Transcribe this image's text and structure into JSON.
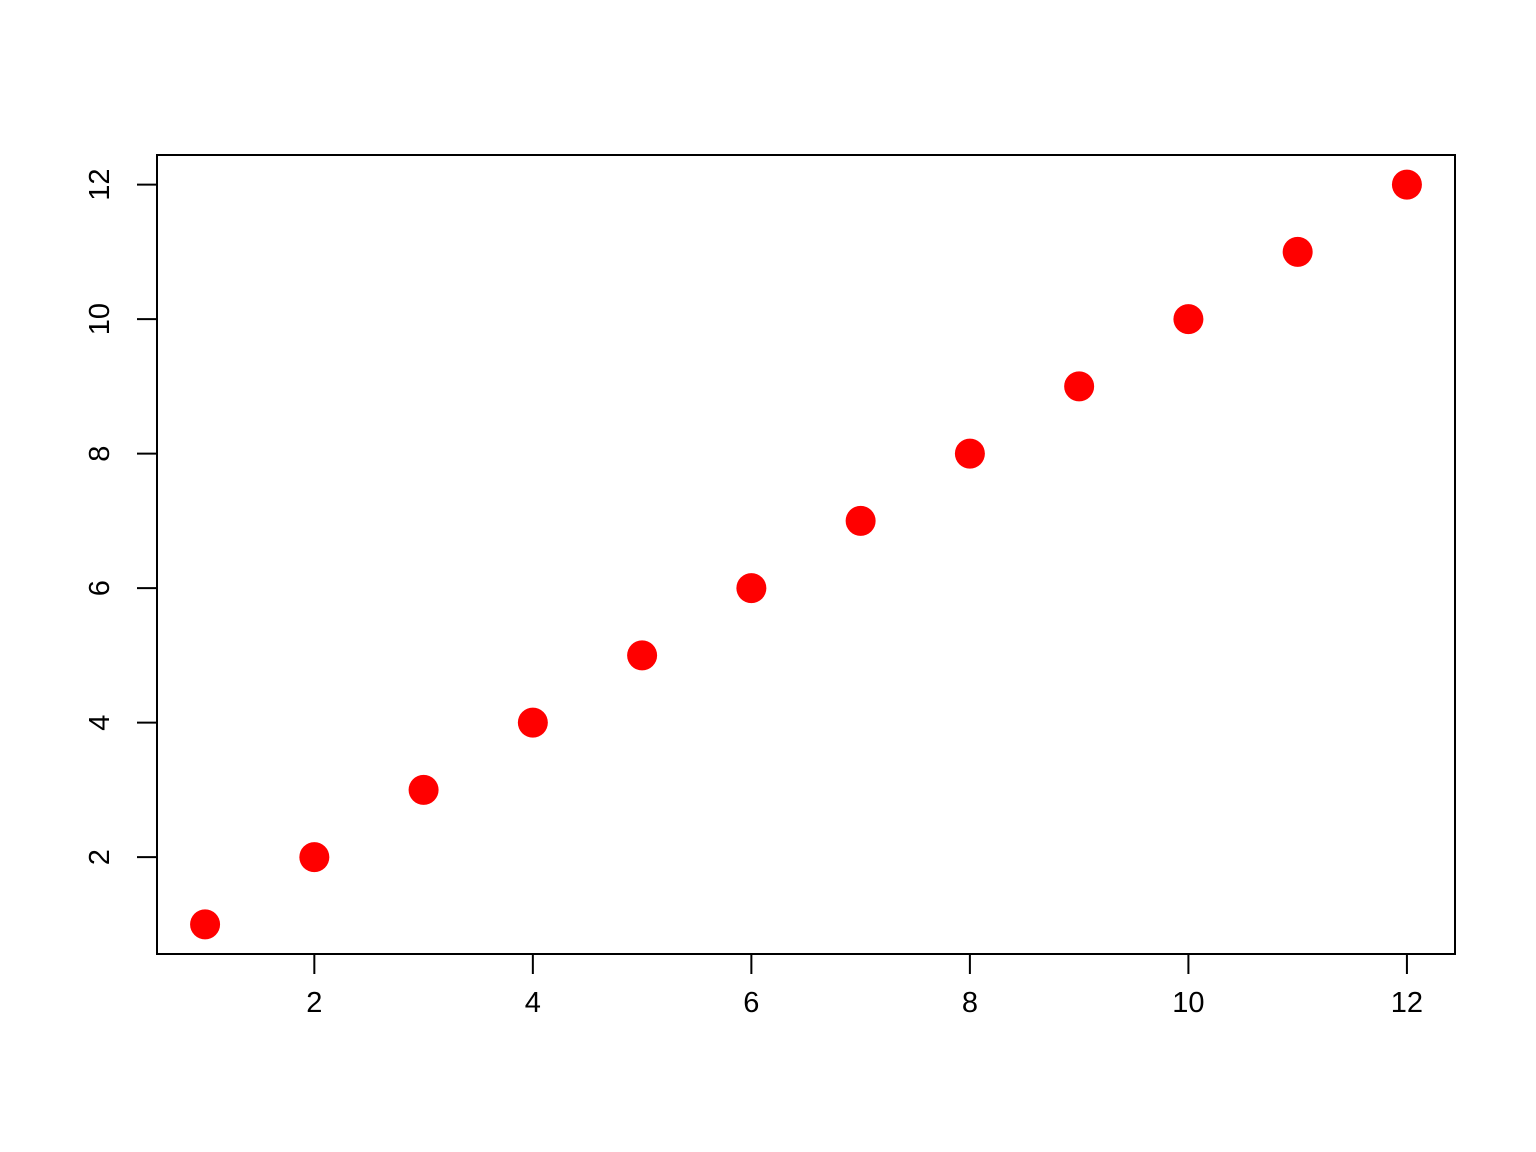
{
  "chart_data": {
    "type": "scatter",
    "title": "",
    "xlabel": "",
    "ylabel": "",
    "x": [
      1,
      2,
      3,
      4,
      5,
      6,
      7,
      8,
      9,
      10,
      11,
      12
    ],
    "y": [
      1,
      2,
      3,
      4,
      5,
      6,
      7,
      8,
      9,
      10,
      11,
      12
    ],
    "x_ticks": [
      2,
      4,
      6,
      8,
      10,
      12
    ],
    "y_ticks": [
      2,
      4,
      6,
      8,
      10,
      12
    ],
    "x_tick_labels": [
      "2",
      "4",
      "6",
      "8",
      "10",
      "12"
    ],
    "y_tick_labels": [
      "2",
      "4",
      "6",
      "8",
      "10",
      "12"
    ],
    "xlim": [
      0.56,
      12.44
    ],
    "ylim": [
      0.56,
      12.44
    ],
    "grid": false,
    "legend": null,
    "point_color": "#FF0000",
    "axis_color": "#000000",
    "background_color": "#FFFFFF"
  }
}
